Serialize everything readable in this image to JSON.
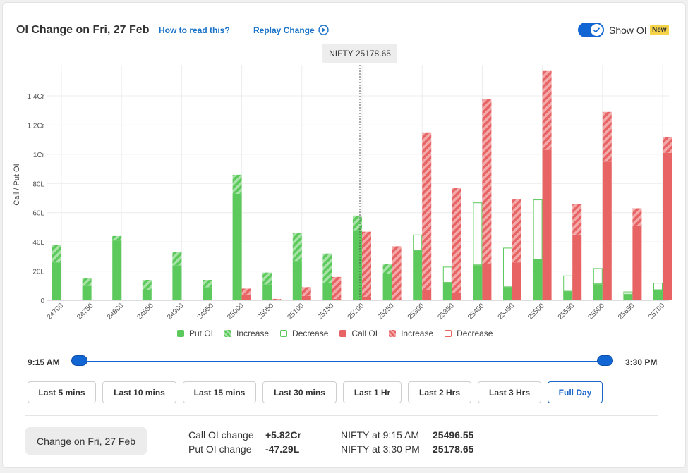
{
  "header": {
    "title": "OI Change on Fri, 27 Feb",
    "how_to_read": "How to read this?",
    "replay": "Replay Change",
    "show_oi_label": "Show OI",
    "new_badge": "New",
    "show_oi_on": true
  },
  "colors": {
    "put": "#5cc95c",
    "put_light": "#a8e3a8",
    "call": "#e86464",
    "call_light": "#f3a9a9",
    "accent": "#1266d4"
  },
  "chart_data": {
    "type": "bar",
    "ylabel": "Call / Put OI",
    "y_ticks": [
      "0",
      "20L",
      "40L",
      "60L",
      "80L",
      "1Cr",
      "1.2Cr",
      "1.4Cr"
    ],
    "y_unit": "Lakh",
    "ylim": [
      0,
      158
    ],
    "spot_label": "NIFTY 25178.65",
    "spot_value": 25178.65,
    "strikes": [
      "24700",
      "24750",
      "24800",
      "24850",
      "24900",
      "24950",
      "25000",
      "25050",
      "25100",
      "25150",
      "25200",
      "25250",
      "25300",
      "25350",
      "25400",
      "25450",
      "25500",
      "25550",
      "25600",
      "25650",
      "25700"
    ],
    "put": [
      {
        "start": 26,
        "end": 38
      },
      {
        "start": 10,
        "end": 15
      },
      {
        "start": 41,
        "end": 44
      },
      {
        "start": 7,
        "end": 14
      },
      {
        "start": 24,
        "end": 33
      },
      {
        "start": 9,
        "end": 14
      },
      {
        "start": 73,
        "end": 86
      },
      {
        "start": 11,
        "end": 19
      },
      {
        "start": 27,
        "end": 46
      },
      {
        "start": 12,
        "end": 32
      },
      {
        "start": 48,
        "end": 58
      },
      {
        "start": 18,
        "end": 25
      },
      {
        "start": 45,
        "end": 34
      },
      {
        "start": 23,
        "end": 12
      },
      {
        "start": 67,
        "end": 24
      },
      {
        "start": 36,
        "end": 9
      },
      {
        "start": 69,
        "end": 28
      },
      {
        "start": 17,
        "end": 6
      },
      {
        "start": 22,
        "end": 11
      },
      {
        "start": 6,
        "end": 4
      },
      {
        "start": 12,
        "end": 7
      }
    ],
    "call": [
      {
        "start": 0,
        "end": 0
      },
      {
        "start": 0,
        "end": 0
      },
      {
        "start": 0,
        "end": 0
      },
      {
        "start": 0,
        "end": 0
      },
      {
        "start": 0,
        "end": 0
      },
      {
        "start": 0,
        "end": 0
      },
      {
        "start": 4,
        "end": 8
      },
      {
        "start": 0,
        "end": 1
      },
      {
        "start": 3,
        "end": 9
      },
      {
        "start": 1,
        "end": 16
      },
      {
        "start": 2,
        "end": 47
      },
      {
        "start": 0,
        "end": 37
      },
      {
        "start": 7,
        "end": 115
      },
      {
        "start": 5,
        "end": 77
      },
      {
        "start": 25,
        "end": 138
      },
      {
        "start": 26,
        "end": 69
      },
      {
        "start": 103,
        "end": 157
      },
      {
        "start": 45,
        "end": 66
      },
      {
        "start": 95,
        "end": 129
      },
      {
        "start": 51,
        "end": 63
      },
      {
        "start": 101,
        "end": 112
      }
    ]
  },
  "legend": {
    "put_oi": "Put OI",
    "put_increase": "Increase",
    "put_decrease": "Decrease",
    "call_oi": "Call OI",
    "call_increase": "Increase",
    "call_decrease": "Decrease"
  },
  "slider": {
    "start_label": "9:15 AM",
    "end_label": "3:30 PM"
  },
  "ranges": [
    "Last 5 mins",
    "Last 10 mins",
    "Last 15 mins",
    "Last 30 mins",
    "Last 1 Hr",
    "Last 2 Hrs",
    "Last 3 Hrs",
    "Full Day"
  ],
  "selected_range": "Full Day",
  "summary": {
    "button_label": "Change on Fri, 27 Feb",
    "call_oi_change_label": "Call OI change",
    "call_oi_change_value": "+5.82Cr",
    "put_oi_change_label": "Put OI change",
    "put_oi_change_value": "-47.29L",
    "nifty_start_label": "NIFTY at 9:15 AM",
    "nifty_start_value": "25496.55",
    "nifty_end_label": "NIFTY at 3:30 PM",
    "nifty_end_value": "25178.65"
  }
}
